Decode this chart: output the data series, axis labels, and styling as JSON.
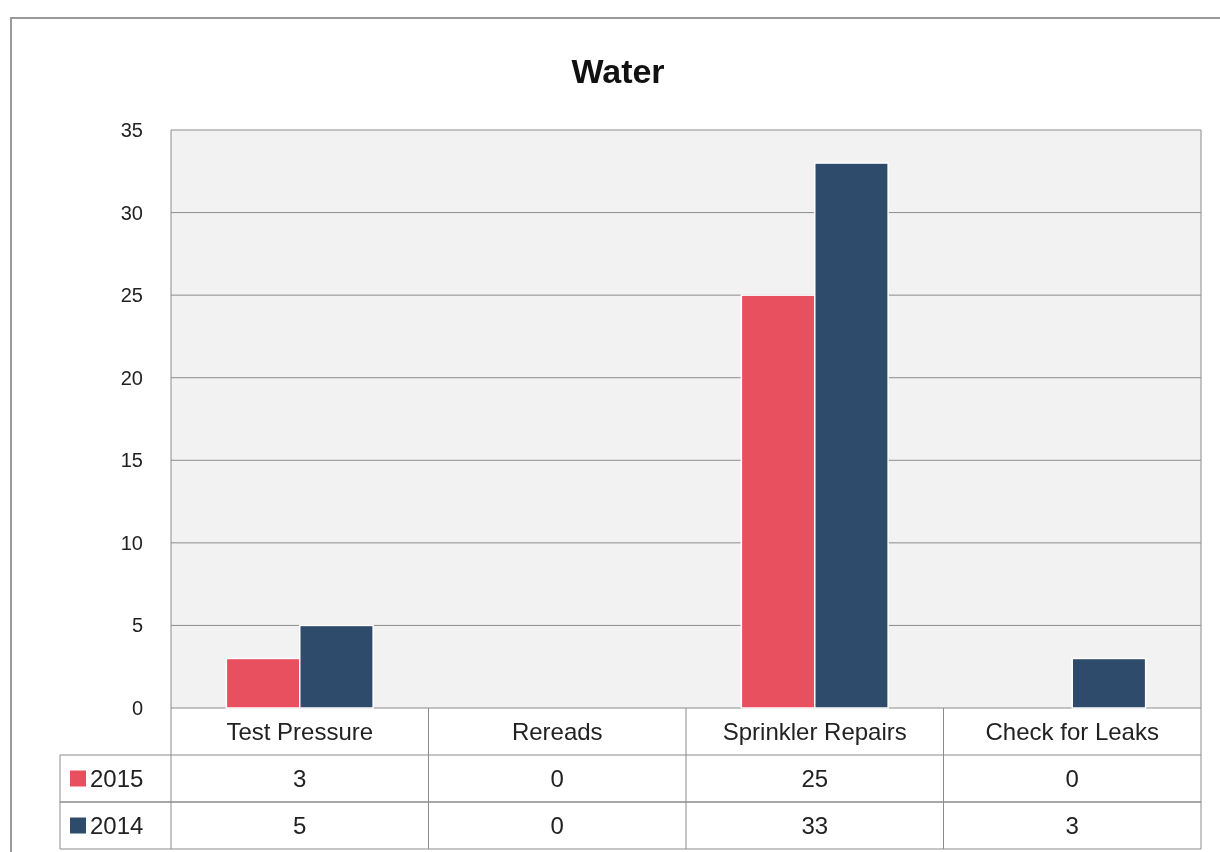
{
  "chart_data": {
    "type": "bar",
    "title": "Water",
    "categories": [
      "Test Pressure",
      "Rereads",
      "Sprinkler Repairs",
      "Check for Leaks"
    ],
    "series": [
      {
        "name": "2015",
        "color": "#e8505f",
        "values": [
          3,
          0,
          25,
          0
        ]
      },
      {
        "name": "2014",
        "color": "#2f4b6b",
        "values": [
          5,
          0,
          33,
          3
        ]
      }
    ],
    "ylim": [
      0,
      35
    ],
    "yticks": [
      0,
      5,
      10,
      15,
      20,
      25,
      30,
      35
    ],
    "grid": "y",
    "legend": "bottom",
    "data_labels": true
  }
}
